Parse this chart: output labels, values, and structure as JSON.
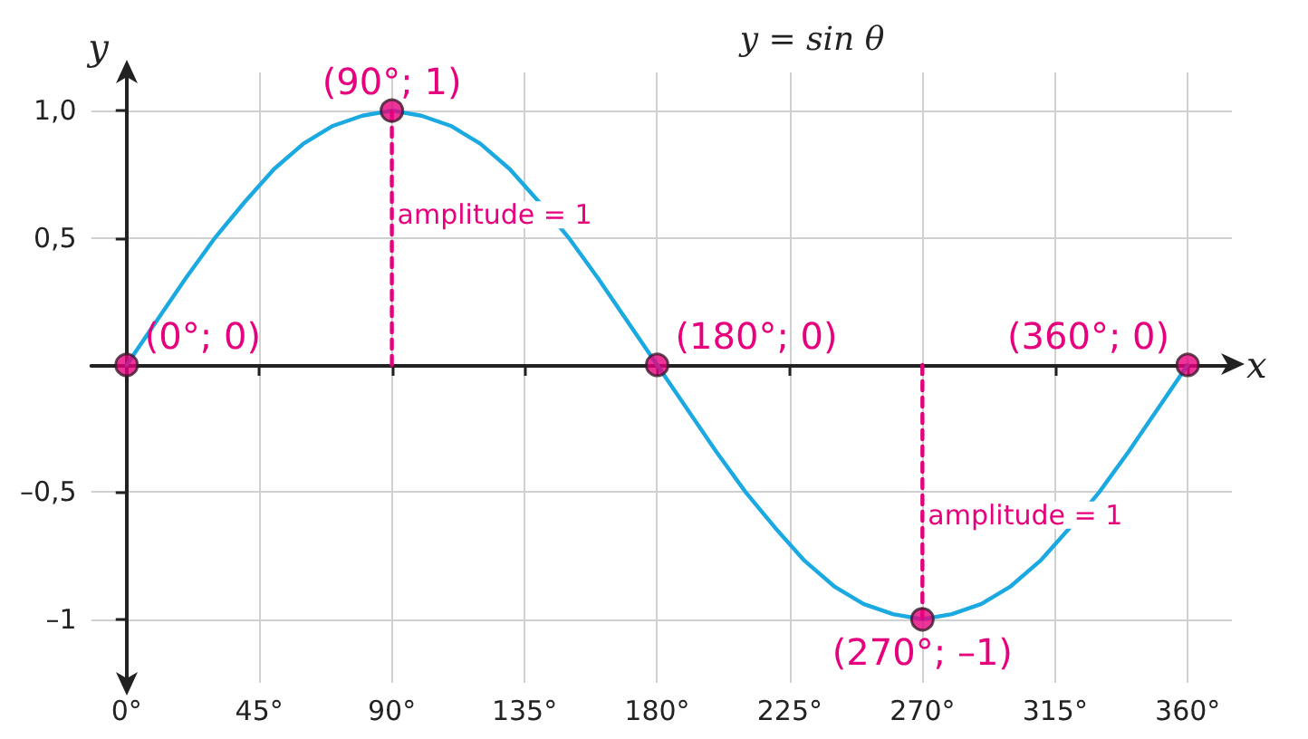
{
  "chart_data": {
    "type": "line",
    "title": "y = sin θ",
    "xlabel": "x",
    "ylabel": "y",
    "xlim": [
      -12,
      375
    ],
    "ylim": [
      -1.25,
      1.15
    ],
    "xticks": [
      {
        "value": 0,
        "label": "0°"
      },
      {
        "value": 45,
        "label": "45°"
      },
      {
        "value": 90,
        "label": "90°"
      },
      {
        "value": 135,
        "label": "135°"
      },
      {
        "value": 180,
        "label": "180°"
      },
      {
        "value": 225,
        "label": "225°"
      },
      {
        "value": 270,
        "label": "270°"
      },
      {
        "value": 315,
        "label": "315°"
      },
      {
        "value": 360,
        "label": "360°"
      }
    ],
    "yticks": [
      {
        "value": -1,
        "label": "–1"
      },
      {
        "value": -0.5,
        "label": "–0,5"
      },
      {
        "value": 0.5,
        "label": "0,5"
      },
      {
        "value": 1,
        "label": "1,0"
      }
    ],
    "grid": true,
    "series": [
      {
        "type": "line",
        "color": "#1ba9e1",
        "marker": "none",
        "line_style": "solid",
        "x": [
          0,
          10,
          20,
          30,
          40,
          50,
          60,
          70,
          80,
          90,
          100,
          110,
          120,
          130,
          140,
          150,
          160,
          170,
          180,
          190,
          200,
          210,
          220,
          230,
          240,
          250,
          260,
          270,
          280,
          290,
          300,
          310,
          320,
          330,
          340,
          350,
          360
        ],
        "values": [
          0,
          0.17,
          0.34,
          0.5,
          0.64,
          0.77,
          0.87,
          0.94,
          0.98,
          1,
          0.98,
          0.94,
          0.87,
          0.77,
          0.64,
          0.5,
          0.34,
          0.17,
          0,
          -0.17,
          -0.34,
          -0.5,
          -0.64,
          -0.77,
          -0.87,
          -0.94,
          -0.98,
          -1,
          -0.98,
          -0.94,
          -0.87,
          -0.77,
          -0.64,
          -0.5,
          -0.34,
          -0.17,
          0
        ]
      },
      {
        "type": "line",
        "color": "#e6007e",
        "marker": "none",
        "line_style": "dashed",
        "x": [
          90,
          90
        ],
        "values": [
          0,
          1
        ]
      },
      {
        "type": "line",
        "color": "#e6007e",
        "marker": "none",
        "line_style": "dashed",
        "x": [
          270,
          270
        ],
        "values": [
          0,
          -1
        ]
      },
      {
        "type": "scatter",
        "color": "#e6007e",
        "marker": "circle",
        "x": [
          0,
          90,
          180,
          270,
          360
        ],
        "values": [
          0,
          1,
          0,
          -1,
          0
        ]
      }
    ],
    "annotations": [
      {
        "text": "(90°; 1)",
        "x": 90,
        "y": 1
      },
      {
        "text": "(0°; 0)",
        "x": 0,
        "y": 0
      },
      {
        "text": "(180°; 0)",
        "x": 180,
        "y": 0
      },
      {
        "text": "(360°; 0)",
        "x": 360,
        "y": 0
      },
      {
        "text": "(270°; –1)",
        "x": 270,
        "y": -1
      },
      {
        "text": "amplitude = 1",
        "x": 90,
        "y": 0.59
      },
      {
        "text": "amplitude = 1",
        "x": 270,
        "y": -0.59
      }
    ]
  }
}
